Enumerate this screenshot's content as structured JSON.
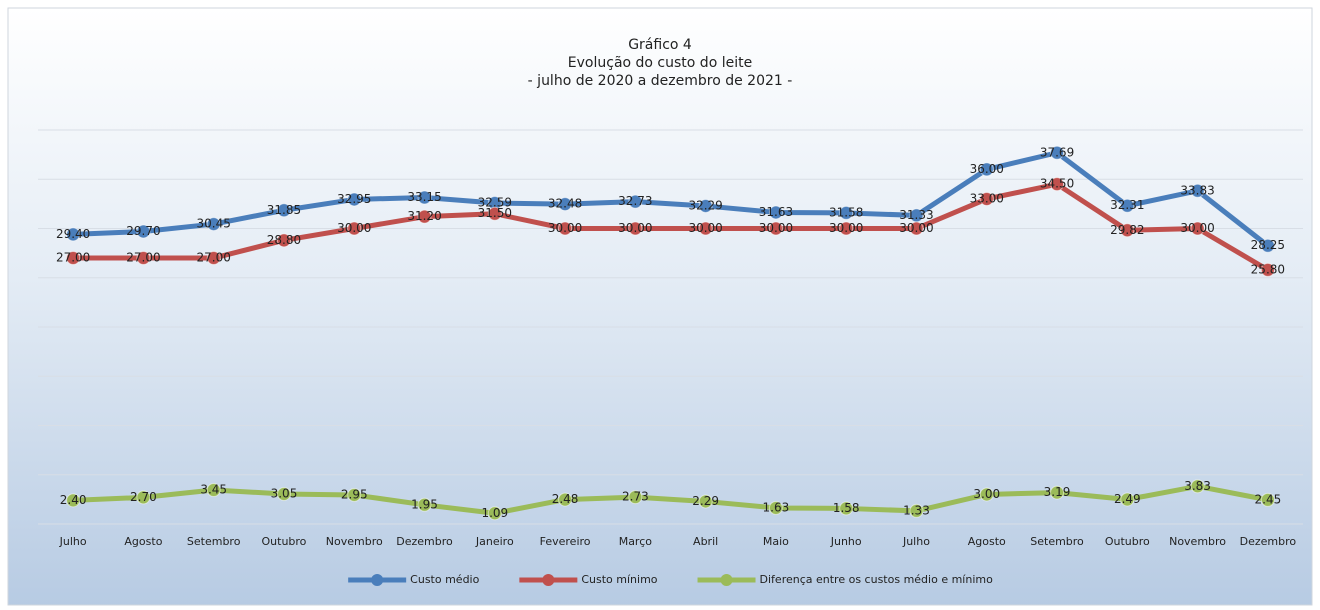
{
  "chart_data": {
    "type": "line",
    "title": "Gráfico 4",
    "subtitle": [
      "Evolução do custo do leite",
      "- julho de 2020 a dezembro de 2021 -"
    ],
    "categories": [
      "Julho",
      "Agosto",
      "Setembro",
      "Outubro",
      "Novembro",
      "Dezembro",
      "Janeiro",
      "Fevereiro",
      "Março",
      "Abril",
      "Maio",
      "Junho",
      "Julho",
      "Agosto",
      "Setembro",
      "Outubro",
      "Novembro",
      "Dezembro"
    ],
    "series": [
      {
        "name": "Custo médio",
        "color": "#4a7ebb",
        "values": [
          29.4,
          29.7,
          30.45,
          31.85,
          32.95,
          33.15,
          32.59,
          32.48,
          32.73,
          32.29,
          31.63,
          31.58,
          31.33,
          36.0,
          37.69,
          32.31,
          33.83,
          28.25
        ],
        "value_labels": [
          "29.40",
          "29.70",
          "30.45",
          "31.85",
          "32.95",
          "33.15",
          "32.59",
          "32.48",
          "32.73",
          "32.29",
          "31.63",
          "31.58",
          "31.33",
          "36.00",
          "37.69",
          "32.31",
          "33.83",
          "28.25"
        ]
      },
      {
        "name": "Custo mínimo",
        "color": "#c0504d",
        "values": [
          27.0,
          27.0,
          27.0,
          28.8,
          30.0,
          31.2,
          31.5,
          30.0,
          30.0,
          30.0,
          30.0,
          30.0,
          30.0,
          33.0,
          34.5,
          29.82,
          30.0,
          25.8
        ],
        "value_labels": [
          "27.00",
          "27.00",
          "27.00",
          "28.80",
          "30.00",
          "31.20",
          "31.50",
          "30.00",
          "30.00",
          "30.00",
          "30.00",
          "30.00",
          "30.00",
          "33.00",
          "34.50",
          "29.82",
          "30.00",
          "25.80"
        ]
      },
      {
        "name": "Diferença entre os custos médio e mínimo",
        "color": "#9bbb59",
        "values": [
          2.4,
          2.7,
          3.45,
          3.05,
          2.95,
          1.95,
          1.09,
          2.48,
          2.73,
          2.29,
          1.63,
          1.58,
          1.33,
          3.0,
          3.19,
          2.49,
          3.83,
          2.45
        ],
        "value_labels": [
          "2.40",
          "2.70",
          "3.45",
          "3.05",
          "2.95",
          "1.95",
          "1.09",
          "2.48",
          "2.73",
          "2.29",
          "1.63",
          "1.58",
          "1.33",
          "3.00",
          "3.19",
          "2.49",
          "3.83",
          "2.45"
        ]
      }
    ],
    "ylim": [
      0,
      40
    ],
    "yticks": [
      0,
      5,
      10,
      15,
      20,
      25,
      30,
      35,
      40
    ],
    "grid": true,
    "legend": "bottom"
  }
}
